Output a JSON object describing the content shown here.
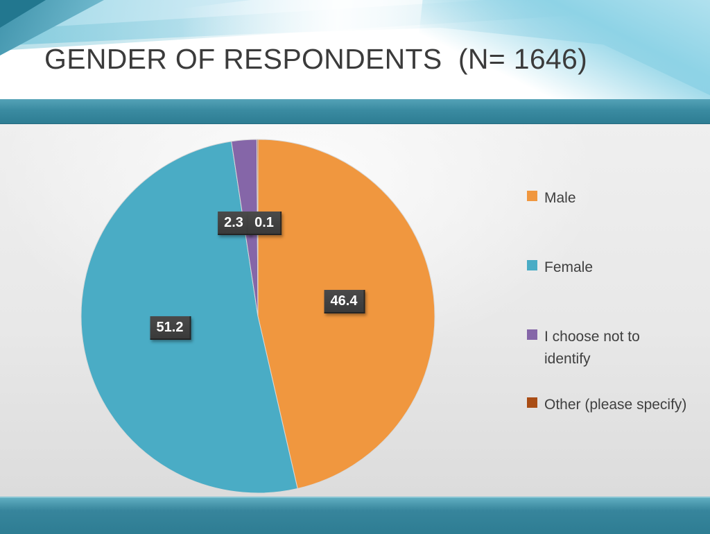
{
  "slide": {
    "title": "GENDER OF RESPONDENTS  (N= 1646)"
  },
  "chart_data": {
    "type": "pie",
    "title": "GENDER OF RESPONDENTS (N= 1646)",
    "total_respondents": 1646,
    "unit": "percent",
    "start_angle": "12 o'clock",
    "direction": "clockwise",
    "legend_position": "right",
    "slices": [
      {
        "label": "Male",
        "value": 46.4,
        "color": "#F0973F"
      },
      {
        "label": "Female",
        "value": 51.2,
        "color": "#4AACC5"
      },
      {
        "label": "I choose not to identify",
        "value": 2.3,
        "color": "#8566A8"
      },
      {
        "label": "Other (please specify)",
        "value": 0.1,
        "color": "#A94D15"
      }
    ],
    "data_labels": [
      "46.4",
      "51.2",
      "2.3",
      "0.1"
    ]
  }
}
